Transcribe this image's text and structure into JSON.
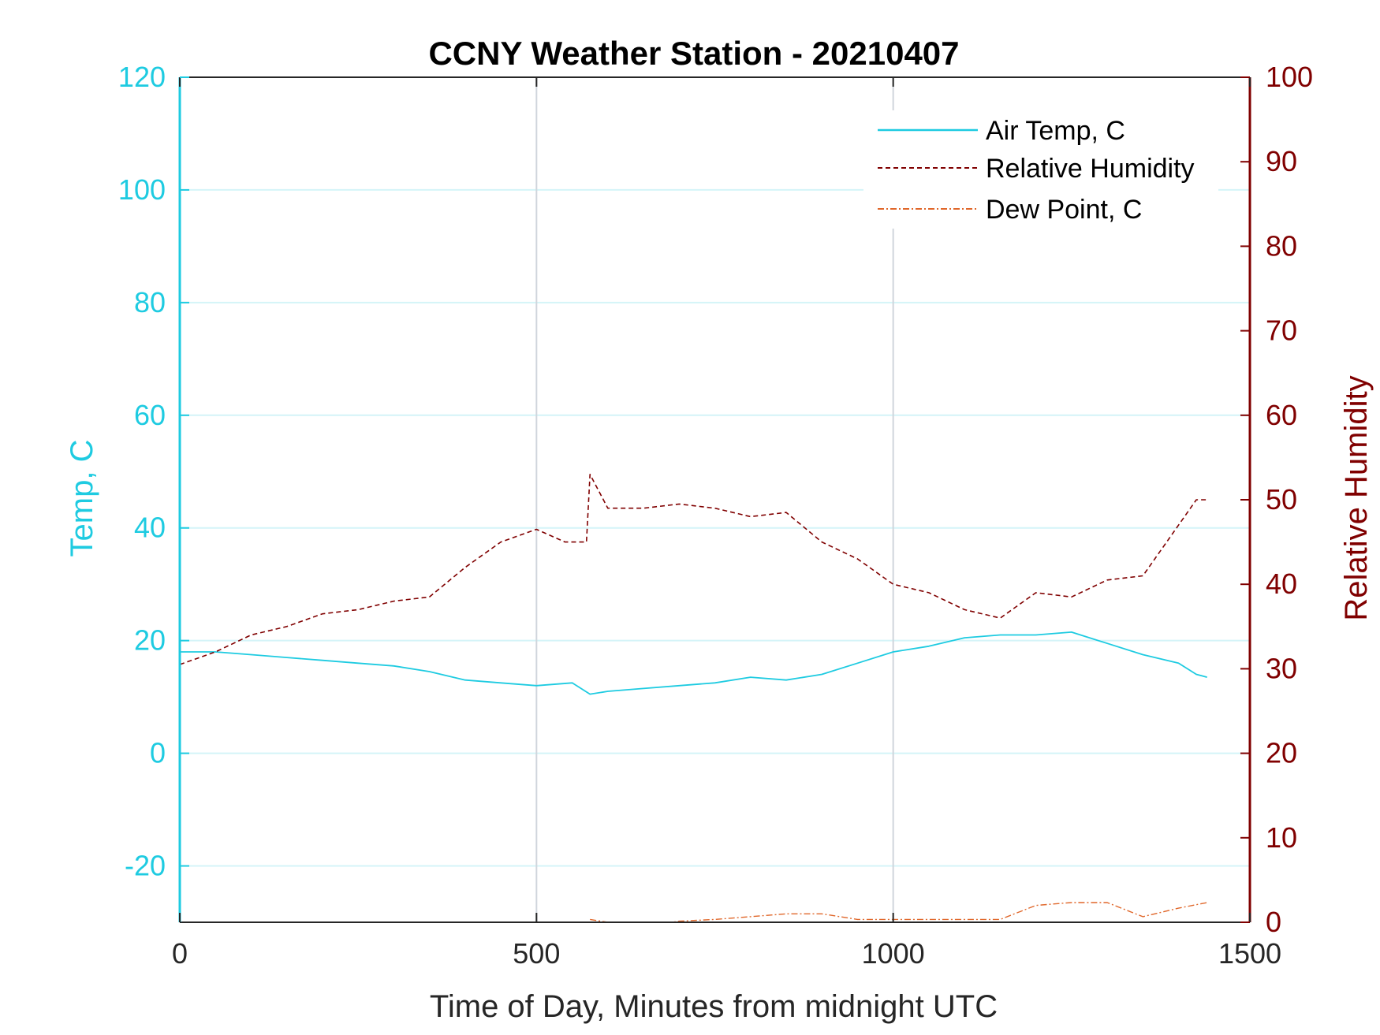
{
  "chart_data": {
    "type": "line",
    "title": "CCNY Weather Station - 20210407",
    "xlabel": "Time of Day, Minutes from midnight UTC",
    "ylabel_left": "Temp, C",
    "ylabel_right": "Relative Humidity",
    "xlim": [
      0,
      1500
    ],
    "ylim_left": [
      -30,
      120
    ],
    "ylim_right": [
      0,
      100
    ],
    "x_ticks": [
      0,
      500,
      1000,
      1500
    ],
    "x_tick_labels": [
      "0",
      "500",
      "1000",
      "1500"
    ],
    "y_ticks_left": [
      -20,
      0,
      20,
      40,
      60,
      80,
      100,
      120
    ],
    "y_tick_labels_left": [
      "-20",
      "0",
      "20",
      "40",
      "60",
      "80",
      "100",
      "120"
    ],
    "y_ticks_right": [
      0,
      10,
      20,
      30,
      40,
      50,
      60,
      70,
      80,
      90,
      100
    ],
    "y_tick_labels_right": [
      "0",
      "10",
      "20",
      "30",
      "40",
      "50",
      "60",
      "70",
      "80",
      "90",
      "100"
    ],
    "grid": true,
    "legend_position": "top-right",
    "colors": {
      "air_temp": "#1ECBE1",
      "humidity": "#800000",
      "dew_point": "#E0672A",
      "grid_y": "#D4F4F8",
      "grid_x": "#D0D5DC",
      "axis_right": "#800000",
      "axis_left": "#1ECBE1"
    },
    "series": [
      {
        "name": "Air Temp, C",
        "axis": "left",
        "style": "solid",
        "x": [
          0,
          50,
          100,
          150,
          200,
          250,
          300,
          350,
          400,
          450,
          500,
          550,
          575,
          600,
          650,
          700,
          750,
          800,
          850,
          900,
          950,
          1000,
          1050,
          1100,
          1150,
          1200,
          1250,
          1300,
          1350,
          1400,
          1425,
          1440
        ],
        "values": [
          18,
          18,
          17.5,
          17,
          16.5,
          16,
          15.5,
          14.5,
          13,
          12.5,
          12,
          12.5,
          10.5,
          11,
          11.5,
          12,
          12.5,
          13.5,
          13,
          14,
          16,
          18,
          19,
          20.5,
          21,
          21,
          21.5,
          19.5,
          17.5,
          16,
          14,
          13.5
        ]
      },
      {
        "name": "Relative Humidity",
        "axis": "right",
        "style": "dashed",
        "x": [
          0,
          50,
          100,
          150,
          200,
          250,
          300,
          350,
          400,
          450,
          500,
          540,
          570,
          575,
          600,
          650,
          700,
          750,
          800,
          850,
          900,
          950,
          1000,
          1050,
          1100,
          1150,
          1200,
          1250,
          1300,
          1350,
          1400,
          1425,
          1440
        ],
        "values": [
          30.5,
          32,
          34,
          35,
          36.5,
          37,
          38,
          38.5,
          42,
          45,
          46.5,
          45,
          45,
          53,
          49,
          49,
          49.5,
          49,
          48,
          48.5,
          45,
          43,
          40,
          39,
          37,
          36,
          39,
          38.5,
          40.5,
          41,
          47,
          50,
          50
        ]
      },
      {
        "name": "Dew Point, C",
        "axis": "left",
        "style": "dashdot",
        "x": [
          575,
          600,
          650,
          690,
          700,
          750,
          800,
          850,
          900,
          950,
          1000,
          1050,
          1100,
          1150,
          1200,
          1250,
          1300,
          1350,
          1400,
          1440
        ],
        "values": [
          -29.5,
          -30,
          -30,
          -30,
          -29.8,
          -29.5,
          -29,
          -28.5,
          -28.5,
          -29.5,
          -29.5,
          -29.5,
          -29.5,
          -29.5,
          -27,
          -26.5,
          -26.5,
          -29,
          -27.5,
          -26.5
        ]
      }
    ]
  }
}
